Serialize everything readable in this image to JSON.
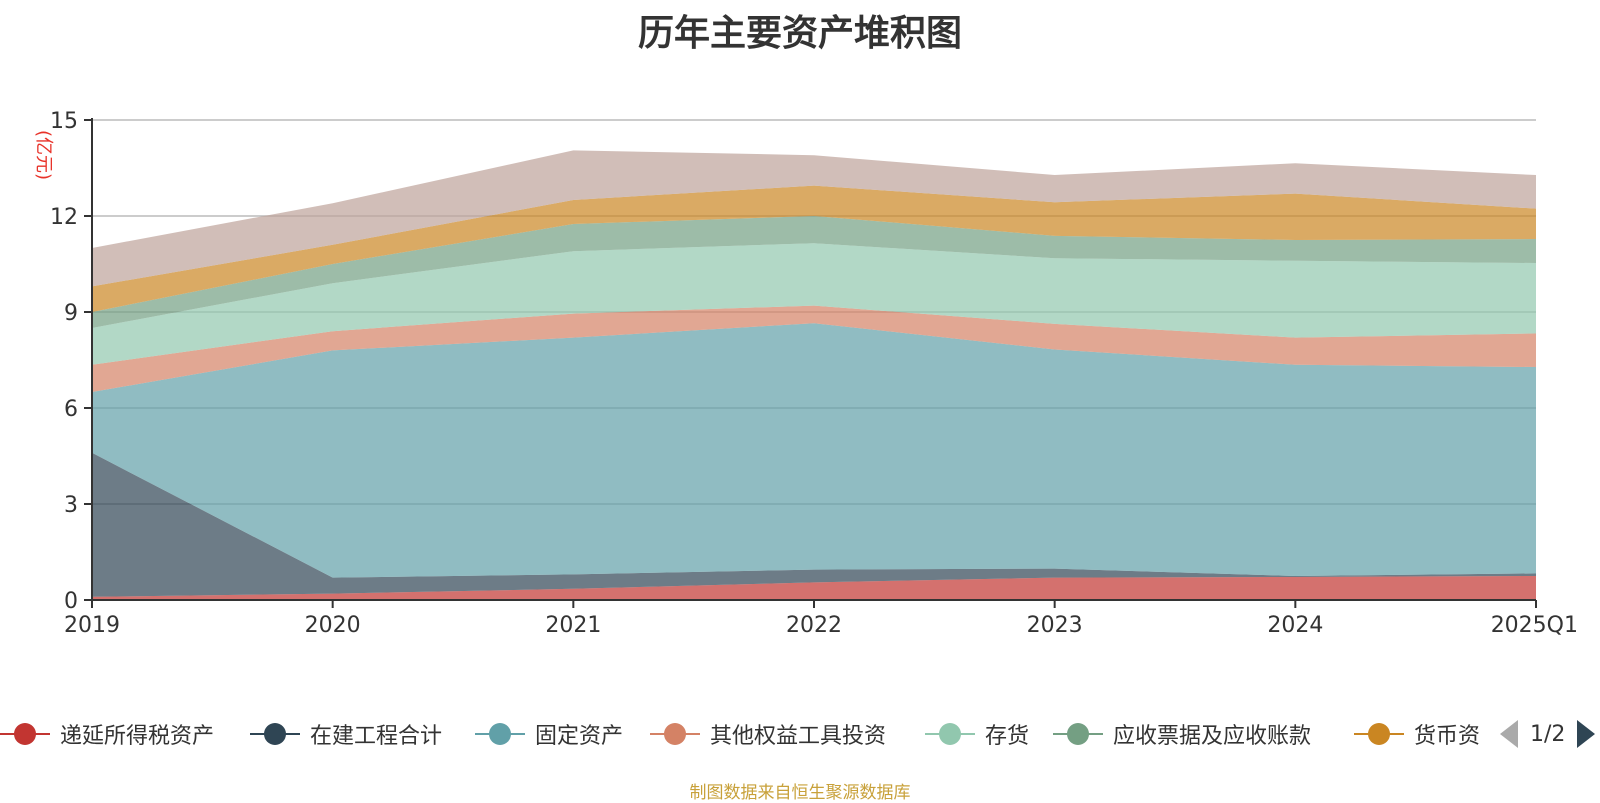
{
  "chart_data": {
    "type": "area",
    "stacked": true,
    "title": "历年主要资产堆积图",
    "ylabel": "(亿元)",
    "ylim": [
      0,
      15
    ],
    "yticks": [
      0,
      3,
      6,
      9,
      12,
      15
    ],
    "categories": [
      "2019",
      "2020",
      "2021",
      "2022",
      "2023",
      "2024",
      "2025Q1"
    ],
    "grid": true,
    "legend_position": "bottom",
    "series": [
      {
        "name": "递延所得税资产",
        "color": "#c23531",
        "values": [
          0.1,
          0.2,
          0.35,
          0.55,
          0.7,
          0.72,
          0.75
        ]
      },
      {
        "name": "在建工程合计",
        "color": "#2f4554",
        "values": [
          4.5,
          0.5,
          0.45,
          0.4,
          0.28,
          0.03,
          0.08
        ]
      },
      {
        "name": "固定资产",
        "color": "#61a0a8",
        "values": [
          1.9,
          7.1,
          7.4,
          7.7,
          6.85,
          6.6,
          6.45
        ]
      },
      {
        "name": "其他权益工具投资",
        "color": "#d48265",
        "values": [
          0.85,
          0.6,
          0.75,
          0.55,
          0.8,
          0.85,
          1.05
        ]
      },
      {
        "name": "存货",
        "color": "#91c7ae",
        "values": [
          1.15,
          1.5,
          1.95,
          1.95,
          2.05,
          2.4,
          2.2
        ]
      },
      {
        "name": "应收票据及应收账款",
        "color": "#749f83",
        "values": [
          0.5,
          0.6,
          0.85,
          0.85,
          0.7,
          0.65,
          0.75
        ]
      },
      {
        "name": "货币资金",
        "color": "#ca8622",
        "values": [
          0.8,
          0.6,
          0.75,
          0.95,
          1.05,
          1.45,
          0.95
        ]
      },
      {
        "name": "",
        "color": "#bda29a",
        "values": [
          1.2,
          1.3,
          1.55,
          0.95,
          0.85,
          0.95,
          1.05
        ]
      }
    ]
  },
  "legend": {
    "items": [
      "递延所得税资产",
      "在建工程合计",
      "固定资产",
      "其他权益工具投资",
      "存货",
      "应收票据及应收账款",
      "货币资"
    ],
    "page": "1/2"
  },
  "source": "制图数据来自恒生聚源数据库"
}
